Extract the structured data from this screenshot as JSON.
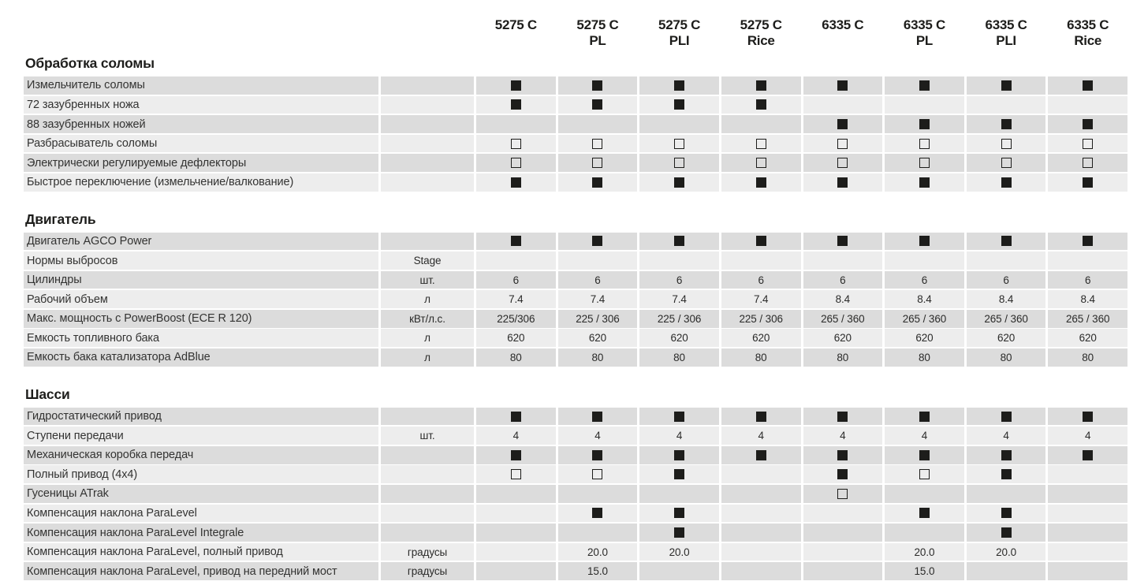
{
  "columns": [
    {
      "model": "5275 C",
      "variant": ""
    },
    {
      "model": "5275 C",
      "variant": "PL"
    },
    {
      "model": "5275 C",
      "variant": "PLI"
    },
    {
      "model": "5275 C",
      "variant": "Rice"
    },
    {
      "model": "6335 C",
      "variant": ""
    },
    {
      "model": "6335 C",
      "variant": "PL"
    },
    {
      "model": "6335 C",
      "variant": "PLI"
    },
    {
      "model": "6335 C",
      "variant": "Rice"
    }
  ],
  "marker_legend": {
    "F": "filled-square-icon",
    "E": "empty-square-icon"
  },
  "colors": {
    "row_dark": "#dcdcdc",
    "row_light": "#ededed",
    "ink": "#1d1d1b"
  },
  "sections": [
    {
      "title": "Обработка соломы",
      "rows": [
        {
          "label": "Измельчитель соломы",
          "unit": "",
          "cells": [
            "F",
            "F",
            "F",
            "F",
            "F",
            "F",
            "F",
            "F"
          ]
        },
        {
          "label": "72 зазубренных ножа",
          "unit": "",
          "cells": [
            "F",
            "F",
            "F",
            "F",
            "",
            "",
            "",
            ""
          ]
        },
        {
          "label": "88 зазубренных ножей",
          "unit": "",
          "cells": [
            "",
            "",
            "",
            "",
            "F",
            "F",
            "F",
            "F"
          ]
        },
        {
          "label": "Разбрасыватель соломы",
          "unit": "",
          "cells": [
            "E",
            "E",
            "E",
            "E",
            "E",
            "E",
            "E",
            "E"
          ]
        },
        {
          "label": "Электрически регулируемые дефлекторы",
          "unit": "",
          "cells": [
            "E",
            "E",
            "E",
            "E",
            "E",
            "E",
            "E",
            "E"
          ]
        },
        {
          "label": "Быстрое переключение (измельчение/валкование)",
          "unit": "",
          "cells": [
            "F",
            "F",
            "F",
            "F",
            "F",
            "F",
            "F",
            "F"
          ]
        }
      ]
    },
    {
      "title": "Двигатель",
      "rows": [
        {
          "label": "Двигатель AGCO Power",
          "unit": "",
          "cells": [
            "F",
            "F",
            "F",
            "F",
            "F",
            "F",
            "F",
            "F"
          ]
        },
        {
          "label": "Нормы выбросов",
          "unit": "Stage",
          "cells": [
            "",
            "",
            "",
            "",
            "",
            "",
            "",
            ""
          ]
        },
        {
          "label": "Цилиндры",
          "unit": "шт.",
          "cells": [
            "6",
            "6",
            "6",
            "6",
            "6",
            "6",
            "6",
            "6"
          ]
        },
        {
          "label": "Рабочий объем",
          "unit": "л",
          "cells": [
            "7.4",
            "7.4",
            "7.4",
            "7.4",
            "8.4",
            "8.4",
            "8.4",
            "8.4"
          ]
        },
        {
          "label": "Макс. мощность с PowerBoost (ECE R 120)",
          "unit": "кВт/л.с.",
          "cells": [
            "225/306",
            "225 / 306",
            "225 / 306",
            "225 / 306",
            "265 / 360",
            "265 / 360",
            "265 / 360",
            "265 / 360"
          ]
        },
        {
          "label": "Емкость топливного бака",
          "unit": "л",
          "cells": [
            "620",
            "620",
            "620",
            "620",
            "620",
            "620",
            "620",
            "620"
          ]
        },
        {
          "label": "Емкость бака катализатора AdBlue",
          "unit": "л",
          "cells": [
            "80",
            "80",
            "80",
            "80",
            "80",
            "80",
            "80",
            "80"
          ]
        }
      ]
    },
    {
      "title": "Шасси",
      "rows": [
        {
          "label": "Гидростатический привод",
          "unit": "",
          "cells": [
            "F",
            "F",
            "F",
            "F",
            "F",
            "F",
            "F",
            "F"
          ]
        },
        {
          "label": "Ступени передачи",
          "unit": "шт.",
          "cells": [
            "4",
            "4",
            "4",
            "4",
            "4",
            "4",
            "4",
            "4"
          ]
        },
        {
          "label": "Механическая коробка передач",
          "unit": "",
          "cells": [
            "F",
            "F",
            "F",
            "F",
            "F",
            "F",
            "F",
            "F"
          ]
        },
        {
          "label": "Полный привод (4x4)",
          "unit": "",
          "cells": [
            "E",
            "E",
            "F",
            "",
            "F",
            "E",
            "F",
            ""
          ]
        },
        {
          "label": "Гусеницы ATrak",
          "unit": "",
          "cells": [
            "",
            "",
            "",
            "",
            "E",
            "",
            "",
            ""
          ]
        },
        {
          "label": "Компенсация наклона ParaLevel",
          "unit": "",
          "cells": [
            "",
            "F",
            "F",
            "",
            "",
            "F",
            "F",
            ""
          ]
        },
        {
          "label": "Компенсация наклона ParaLevel Integrale",
          "unit": "",
          "cells": [
            "",
            "",
            "F",
            "",
            "",
            "",
            "F",
            ""
          ]
        },
        {
          "label": "Компенсация наклона ParaLevel, полный привод",
          "unit": "градусы",
          "cells": [
            "",
            "20.0",
            "20.0",
            "",
            "",
            "20.0",
            "20.0",
            ""
          ]
        },
        {
          "label": "Компенсация наклона ParaLevel, привод на передний мост",
          "unit": "градусы",
          "cells": [
            "",
            "15.0",
            "",
            "",
            "",
            "15.0",
            "",
            ""
          ]
        }
      ]
    }
  ]
}
